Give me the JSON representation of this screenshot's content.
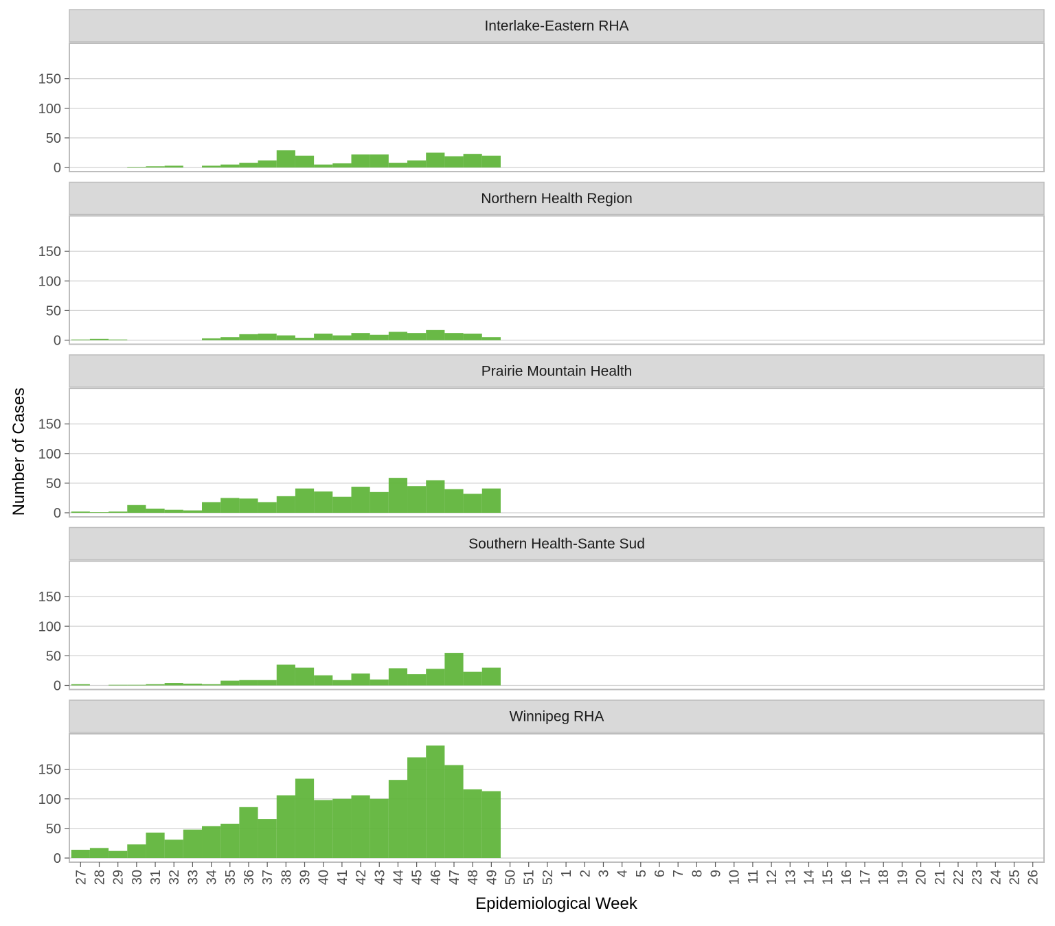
{
  "chart_data": {
    "type": "bar",
    "xlabel": "Epidemiological Week",
    "ylabel": "Number of Cases",
    "ylim": [
      0,
      200
    ],
    "yticks": [
      0,
      50,
      100,
      150
    ],
    "grid": true,
    "bar_color": "#5cb336",
    "strip_color": "#d9d9d9",
    "categories": [
      "27",
      "28",
      "29",
      "30",
      "31",
      "32",
      "33",
      "34",
      "35",
      "36",
      "37",
      "38",
      "39",
      "40",
      "41",
      "42",
      "43",
      "44",
      "45",
      "46",
      "47",
      "48",
      "49",
      "50",
      "51",
      "52",
      "1",
      "2",
      "3",
      "4",
      "5",
      "6",
      "7",
      "8",
      "9",
      "10",
      "11",
      "12",
      "13",
      "14",
      "15",
      "16",
      "17",
      "18",
      "19",
      "20",
      "21",
      "22",
      "23",
      "24",
      "25",
      "26"
    ],
    "panels": [
      {
        "title": "Interlake-Eastern RHA",
        "values": [
          0,
          0,
          0,
          1,
          2,
          3,
          0,
          3,
          5,
          8,
          12,
          29,
          20,
          5,
          7,
          22,
          22,
          8,
          12,
          25,
          19,
          23,
          20
        ]
      },
      {
        "title": "Northern Health Region",
        "values": [
          1,
          2,
          1,
          0,
          0,
          0,
          0,
          3,
          5,
          10,
          11,
          8,
          4,
          11,
          8,
          12,
          9,
          14,
          12,
          17,
          12,
          11,
          5
        ]
      },
      {
        "title": "Prairie Mountain Health",
        "values": [
          2,
          1,
          2,
          13,
          7,
          5,
          4,
          18,
          25,
          24,
          18,
          28,
          41,
          36,
          27,
          44,
          35,
          59,
          45,
          55,
          40,
          32,
          41
        ]
      },
      {
        "title": "Southern Health-Sante Sud",
        "values": [
          2,
          0,
          1,
          1,
          2,
          4,
          3,
          2,
          8,
          9,
          9,
          35,
          30,
          17,
          9,
          20,
          10,
          29,
          19,
          28,
          55,
          23,
          30
        ]
      },
      {
        "title": "Winnipeg RHA",
        "values": [
          14,
          17,
          12,
          23,
          43,
          31,
          48,
          54,
          58,
          86,
          66,
          106,
          134,
          98,
          100,
          106,
          100,
          132,
          170,
          190,
          157,
          116,
          113
        ]
      }
    ]
  }
}
